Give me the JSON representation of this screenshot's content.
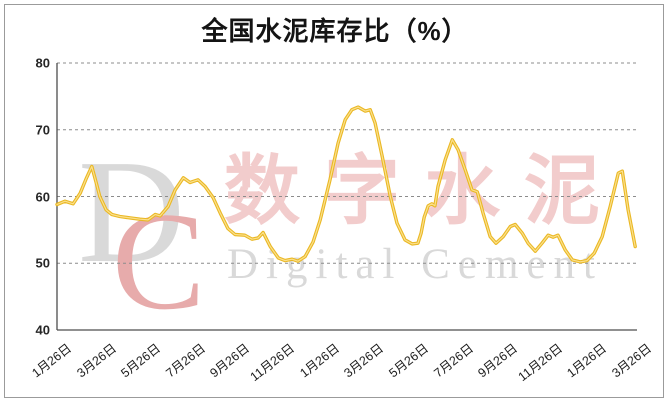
{
  "title": "全国水泥库存比（%）",
  "watermark": {
    "logo_d": "D",
    "logo_c": "C",
    "cn_text": "数字水泥",
    "en_text": "Digital Cement"
  },
  "colors": {
    "line_outer": "#EAB825",
    "line_core": "#FBE08C",
    "grid": "#8c8c8c",
    "axis": "#4d4d4d",
    "watermark_gray": "#d9d9d9",
    "watermark_pink": "#f2cccc",
    "watermark_red": "#e7abab",
    "title_color": "#141414"
  },
  "chart_data": {
    "type": "line",
    "title": "全国水泥库存比（%）",
    "xlabel": "",
    "ylabel": "",
    "ylim": [
      40,
      80
    ],
    "y_ticks": [
      40,
      50,
      60,
      70,
      80
    ],
    "grid": "dashed horizontal at 50,60,70,80",
    "legend": "none",
    "x_tick_labels": [
      "1月26日",
      "3月26日",
      "5月26日",
      "7月26日",
      "9月26日",
      "11月26日",
      "1月26日",
      "3月26日",
      "5月26日",
      "7月26日",
      "9月26日",
      "11月26日",
      "1月26日",
      "3月26日"
    ],
    "x_unit": "tick_index (0 = first 1月26日, 13 = last 3月26日, labels every 2 months, data ~weekly)",
    "series_name": "库存比(%)",
    "points": [
      [
        0.0,
        58.8
      ],
      [
        0.18,
        59.3
      ],
      [
        0.36,
        58.9
      ],
      [
        0.52,
        60.5
      ],
      [
        0.65,
        62.6
      ],
      [
        0.78,
        64.5
      ],
      [
        0.88,
        62.0
      ],
      [
        0.96,
        60.0
      ],
      [
        1.1,
        58.0
      ],
      [
        1.23,
        57.3
      ],
      [
        1.41,
        57.0
      ],
      [
        1.64,
        56.8
      ],
      [
        1.86,
        56.6
      ],
      [
        2.04,
        56.5
      ],
      [
        2.2,
        57.3
      ],
      [
        2.31,
        57.1
      ],
      [
        2.49,
        58.5
      ],
      [
        2.65,
        61.0
      ],
      [
        2.83,
        62.8
      ],
      [
        2.98,
        62.1
      ],
      [
        3.16,
        62.5
      ],
      [
        3.32,
        61.5
      ],
      [
        3.5,
        59.8
      ],
      [
        3.66,
        57.5
      ],
      [
        3.83,
        55.2
      ],
      [
        3.99,
        54.3
      ],
      [
        4.21,
        54.2
      ],
      [
        4.37,
        53.6
      ],
      [
        4.51,
        53.8
      ],
      [
        4.62,
        54.6
      ],
      [
        4.78,
        52.5
      ],
      [
        4.96,
        50.8
      ],
      [
        5.11,
        50.4
      ],
      [
        5.27,
        50.6
      ],
      [
        5.4,
        50.3
      ],
      [
        5.56,
        51.0
      ],
      [
        5.74,
        53.2
      ],
      [
        5.9,
        56.5
      ],
      [
        6.12,
        62.5
      ],
      [
        6.3,
        68.0
      ],
      [
        6.46,
        71.5
      ],
      [
        6.61,
        73.0
      ],
      [
        6.75,
        73.4
      ],
      [
        6.91,
        72.8
      ],
      [
        7.02,
        73.0
      ],
      [
        7.13,
        71.0
      ],
      [
        7.29,
        66.0
      ],
      [
        7.47,
        60.0
      ],
      [
        7.62,
        56.0
      ],
      [
        7.8,
        53.5
      ],
      [
        7.96,
        52.9
      ],
      [
        8.09,
        53.0
      ],
      [
        8.16,
        54.5
      ],
      [
        8.23,
        56.9
      ],
      [
        8.32,
        58.6
      ],
      [
        8.4,
        58.9
      ],
      [
        8.47,
        58.6
      ],
      [
        8.54,
        61.5
      ],
      [
        8.7,
        65.5
      ],
      [
        8.86,
        68.5
      ],
      [
        8.99,
        67.0
      ],
      [
        9.15,
        64.0
      ],
      [
        9.3,
        61.0
      ],
      [
        9.42,
        60.7
      ],
      [
        9.55,
        57.5
      ],
      [
        9.71,
        54.0
      ],
      [
        9.84,
        53.0
      ],
      [
        10.0,
        54.0
      ],
      [
        10.16,
        55.5
      ],
      [
        10.27,
        55.8
      ],
      [
        10.43,
        54.5
      ],
      [
        10.56,
        53.0
      ],
      [
        10.72,
        51.8
      ],
      [
        10.87,
        53.0
      ],
      [
        11.01,
        54.2
      ],
      [
        11.12,
        53.9
      ],
      [
        11.23,
        54.2
      ],
      [
        11.39,
        52.0
      ],
      [
        11.55,
        50.5
      ],
      [
        11.73,
        50.2
      ],
      [
        11.88,
        50.4
      ],
      [
        12.04,
        51.5
      ],
      [
        12.22,
        54.0
      ],
      [
        12.4,
        58.5
      ],
      [
        12.58,
        63.5
      ],
      [
        12.67,
        63.8
      ],
      [
        12.8,
        58.0
      ],
      [
        12.96,
        52.5
      ]
    ]
  }
}
